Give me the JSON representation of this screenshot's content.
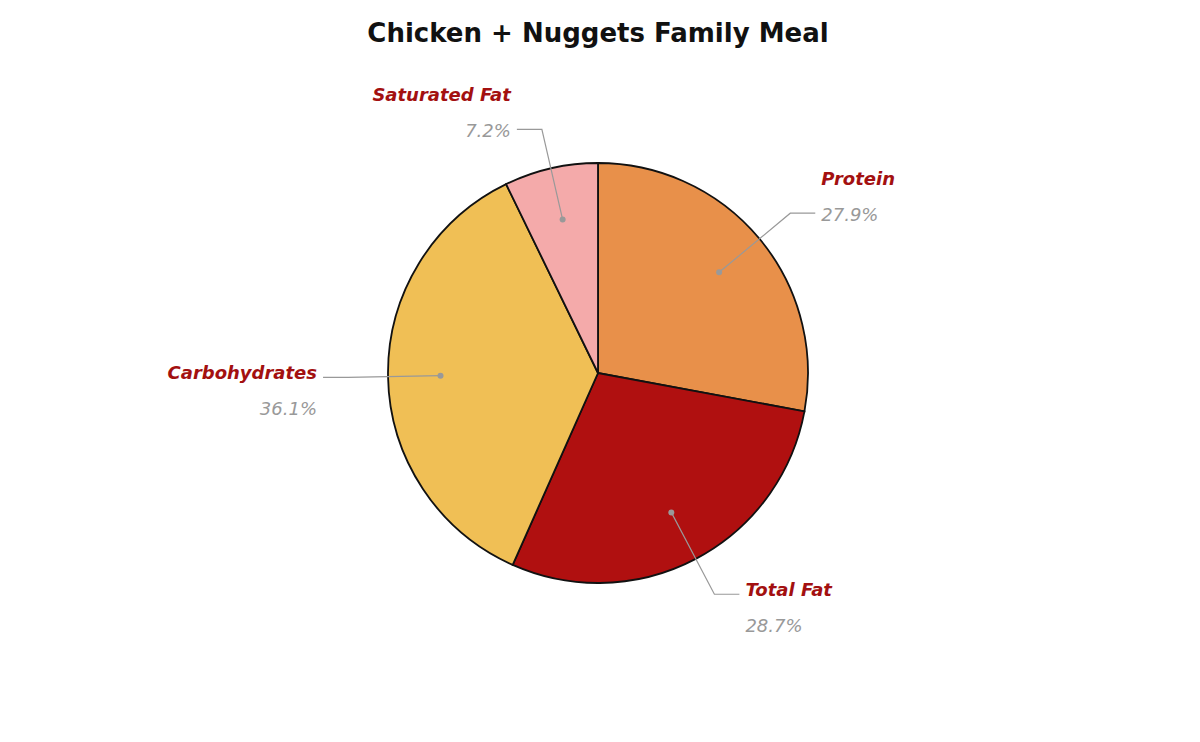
{
  "chart_data": {
    "type": "pie",
    "title": "Chicken + Nuggets Family Meal",
    "categories": [
      "Protein",
      "Total Fat",
      "Carbohydrates",
      "Saturated Fat"
    ],
    "values": [
      27.9,
      28.7,
      36.1,
      7.2
    ],
    "value_labels": [
      "27.9%",
      "28.7%",
      "36.1%",
      "7.2%"
    ],
    "colors": [
      "#E8904A",
      "#B01010",
      "#F0BF55",
      "#F4AAAA"
    ],
    "data_labels": true
  }
}
